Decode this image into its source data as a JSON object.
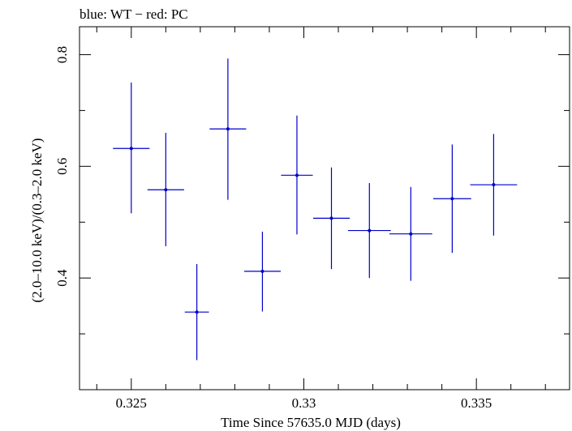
{
  "chart_data": {
    "type": "scatter",
    "title": "blue: WT − red: PC",
    "xlabel": "Time Since 57635.0 MJD (days)",
    "ylabel": "(2.0–10.0 keV)/(0.3–2.0 keV)",
    "xlim": [
      0.3235,
      0.3377
    ],
    "ylim": [
      0.2,
      0.85
    ],
    "x_ticks": [
      0.325,
      0.33,
      0.335
    ],
    "x_tick_labels": [
      "0.325",
      "0.33",
      "0.335"
    ],
    "y_ticks": [
      0.4,
      0.6,
      0.8
    ],
    "y_tick_labels": [
      "0.4",
      "0.6",
      "0.8"
    ],
    "grid": false,
    "series": [
      {
        "name": "WT",
        "color": "#0000cc",
        "points": [
          {
            "x": 0.325,
            "xerr": 0.00053,
            "y": 0.632,
            "yerr_lo": 0.116,
            "yerr_hi": 0.118
          },
          {
            "x": 0.326,
            "xerr": 0.00053,
            "y": 0.558,
            "yerr_lo": 0.101,
            "yerr_hi": 0.102
          },
          {
            "x": 0.3269,
            "xerr": 0.00035,
            "y": 0.339,
            "yerr_lo": 0.086,
            "yerr_hi": 0.086
          },
          {
            "x": 0.3278,
            "xerr": 0.00053,
            "y": 0.667,
            "yerr_lo": 0.127,
            "yerr_hi": 0.126
          },
          {
            "x": 0.3288,
            "xerr": 0.00053,
            "y": 0.412,
            "yerr_lo": 0.072,
            "yerr_hi": 0.071
          },
          {
            "x": 0.3298,
            "xerr": 0.00046,
            "y": 0.584,
            "yerr_lo": 0.106,
            "yerr_hi": 0.107
          },
          {
            "x": 0.3308,
            "xerr": 0.00053,
            "y": 0.507,
            "yerr_lo": 0.091,
            "yerr_hi": 0.091
          },
          {
            "x": 0.3319,
            "xerr": 0.00062,
            "y": 0.485,
            "yerr_lo": 0.085,
            "yerr_hi": 0.085
          },
          {
            "x": 0.3331,
            "xerr": 0.00062,
            "y": 0.479,
            "yerr_lo": 0.084,
            "yerr_hi": 0.084
          },
          {
            "x": 0.3343,
            "xerr": 0.00055,
            "y": 0.542,
            "yerr_lo": 0.097,
            "yerr_hi": 0.097
          },
          {
            "x": 0.3355,
            "xerr": 0.00068,
            "y": 0.567,
            "yerr_lo": 0.091,
            "yerr_hi": 0.091
          }
        ]
      }
    ]
  }
}
